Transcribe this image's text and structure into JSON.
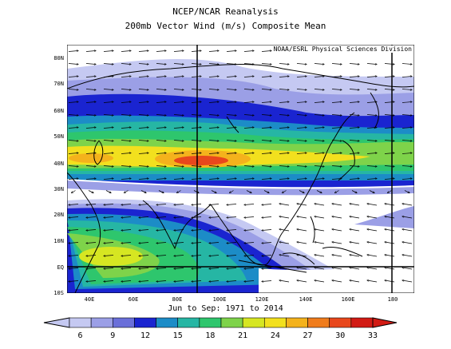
{
  "title_line1": "NCEP/NCAR Reanalysis",
  "title_line2": "200mb Vector Wind (m/s) Composite Mean",
  "credit": "NOAA/ESRL Physical Sciences Division",
  "period": "Jun to Sep: 1971 to 2014",
  "y_ticks": [
    "80N",
    "70N",
    "60N",
    "50N",
    "40N",
    "30N",
    "20N",
    "10N",
    "EQ",
    "10S"
  ],
  "x_ticks": [
    "40E",
    "60E",
    "80E",
    "100E",
    "120E",
    "140E",
    "160E",
    "180"
  ],
  "colorbar": {
    "labels": [
      "6",
      "9",
      "12",
      "15",
      "18",
      "21",
      "24",
      "27",
      "30",
      "33"
    ],
    "colors": [
      "#c5c9f2",
      "#9b9fe6",
      "#6a6fd9",
      "#1a24d0",
      "#1c8cc7",
      "#26b6a4",
      "#2ec66d",
      "#7ed34a",
      "#d6e622",
      "#f2e01e",
      "#f4b21c",
      "#f07c1c",
      "#e8471c",
      "#d21b14"
    ]
  },
  "map_extent": {
    "lon_min": 30,
    "lon_max": 190,
    "lat_min": -10,
    "lat_max": 85
  },
  "shading": {
    "jets": [
      "subtropical-westerly-jet-40N",
      "tropical-easterly-jet-5N"
    ],
    "peak_speed_ms": 33
  }
}
